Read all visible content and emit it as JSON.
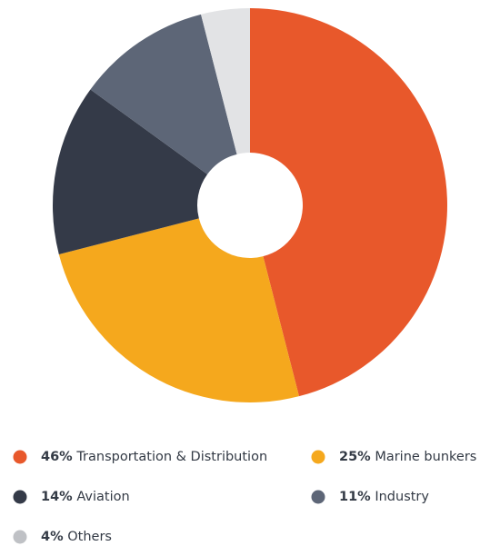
{
  "chart_data": {
    "type": "pie",
    "categories": [
      "Transportation & Distribution",
      "Marine bunkers",
      "Aviation",
      "Industry",
      "Others"
    ],
    "values": [
      46,
      25,
      14,
      11,
      4
    ],
    "value_labels": [
      "46%",
      "25%",
      "14%",
      "11%",
      "4%"
    ],
    "colors": [
      "#e8582b",
      "#f5a81d",
      "#343a48",
      "#5d6677",
      "#e2e3e5"
    ],
    "legend_colors": [
      "#e8582b",
      "#f5a81d",
      "#343a48",
      "#5d6677",
      "#bfc1c5"
    ]
  }
}
